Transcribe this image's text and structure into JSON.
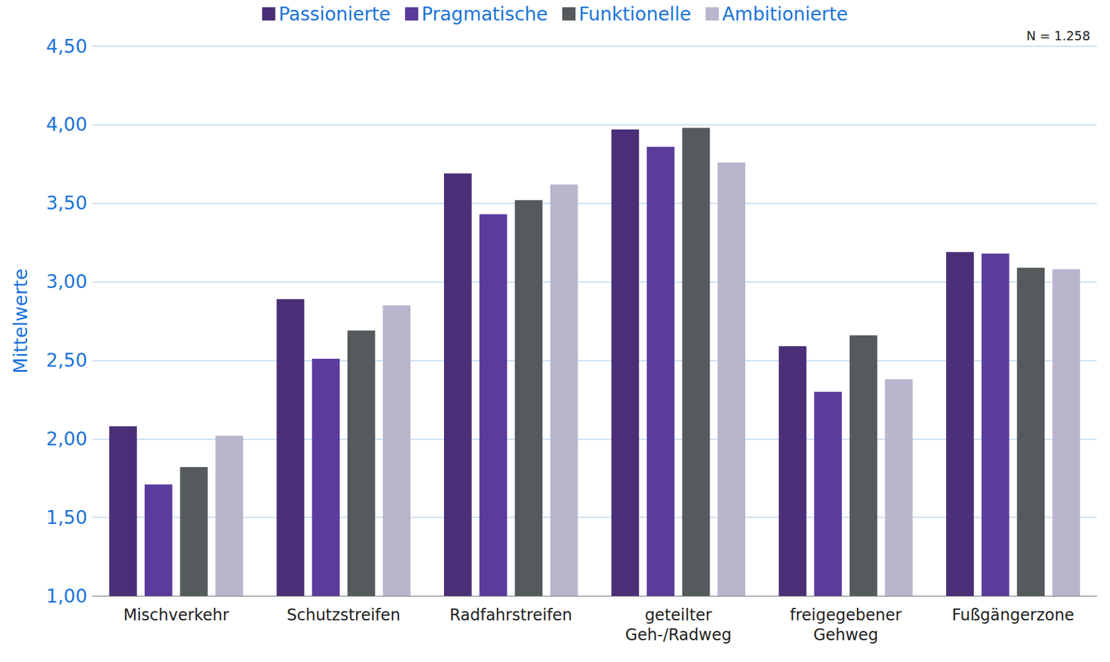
{
  "chart_data": {
    "type": "bar",
    "y_label": "Mittelwerte",
    "annotation": "N = 1.258",
    "categories": [
      "Mischverkehr",
      "Schutzstreifen",
      "Radfahrstreifen",
      "geteilter Geh-/Radweg",
      "freigegebener Gehweg",
      "Fußgängerzone"
    ],
    "series": [
      {
        "name": "Passionierte",
        "color": "#4a2f78",
        "values": [
          2.08,
          2.89,
          3.69,
          3.97,
          2.59,
          3.19
        ]
      },
      {
        "name": "Pragmatische",
        "color": "#5b3b9c",
        "values": [
          1.71,
          2.51,
          3.43,
          3.86,
          2.3,
          3.18
        ]
      },
      {
        "name": "Funktionelle",
        "color": "#555a5c",
        "values": [
          1.82,
          2.69,
          3.52,
          3.98,
          2.66,
          3.09
        ]
      },
      {
        "name": "Ambitionierte",
        "color": "#bab4cd",
        "values": [
          2.02,
          2.85,
          3.62,
          3.76,
          2.38,
          3.08
        ]
      }
    ],
    "ylim": [
      1,
      4.5
    ],
    "yticks": [
      {
        "value": 1,
        "label": "1,00"
      },
      {
        "value": 1.5,
        "label": "1,50"
      },
      {
        "value": 2,
        "label": "2,00"
      },
      {
        "value": 2.5,
        "label": "2,50"
      },
      {
        "value": 3,
        "label": "3,00"
      },
      {
        "value": 3.5,
        "label": "3,50"
      },
      {
        "value": 4,
        "label": "4,00"
      },
      {
        "value": 4.5,
        "label": "4,50"
      }
    ],
    "grid": true,
    "legend": "top"
  }
}
